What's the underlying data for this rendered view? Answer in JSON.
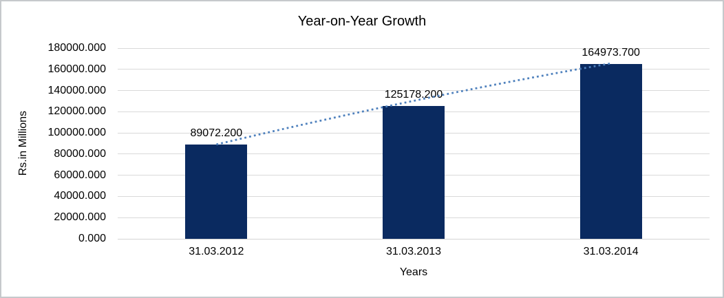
{
  "chart": {
    "background": "#ffffff",
    "border_color": "#c6c9cc",
    "text_color": "#000000",
    "gridline_color": "#d9d9d9",
    "axis_line_color": "#d3d3d3"
  },
  "chart_data": {
    "type": "bar",
    "title": "Year-on-Year Growth",
    "xlabel": "Years",
    "ylabel": "Rs.in Millions",
    "categories": [
      "31.03.2012",
      "31.03.2013",
      "31.03.2014"
    ],
    "values": [
      89072.2,
      125178.2,
      164973.7
    ],
    "data_labels": [
      "89072.200",
      "125178.200",
      "164973.700"
    ],
    "y_ticks": [
      "0.000",
      "20000.000",
      "40000.000",
      "60000.000",
      "80000.000",
      "100000.000",
      "120000.000",
      "140000.000",
      "160000.000",
      "180000.000"
    ],
    "ylim": [
      0,
      180000
    ],
    "y_tick_step": 20000,
    "grid": true,
    "legend": "none",
    "bar_color": "#0a2a60",
    "trendline": {
      "style": "dotted",
      "color": "#4f81bd",
      "from_category_index": 0,
      "to_category_index": 2
    }
  }
}
